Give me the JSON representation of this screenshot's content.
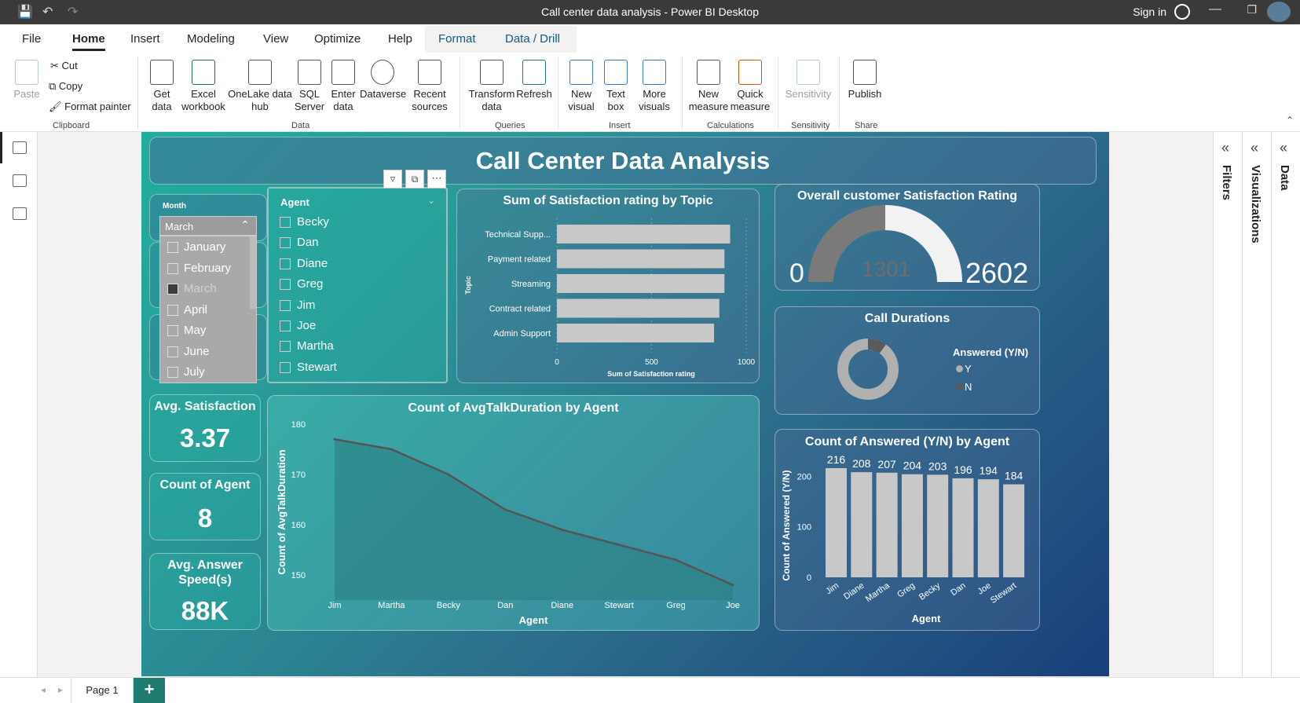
{
  "window": {
    "title": "Call center data analysis - Power BI Desktop",
    "signin": "Sign in"
  },
  "menu": {
    "file": "File",
    "home": "Home",
    "insert": "Insert",
    "modeling": "Modeling",
    "view": "View",
    "optimize": "Optimize",
    "help": "Help",
    "format": "Format",
    "data_drill": "Data / Drill"
  },
  "ribbon": {
    "paste": "Paste",
    "cut": "Cut",
    "copy": "Copy",
    "format_painter": "Format painter",
    "clipboard": "Clipboard",
    "get_data": "Get data",
    "excel": "Excel workbook",
    "onelake": "OneLake data hub",
    "sql": "SQL Server",
    "enter_data": "Enter data",
    "dataverse": "Dataverse",
    "recent": "Recent sources",
    "data_group": "Data",
    "transform": "Transform data",
    "refresh": "Refresh",
    "queries": "Queries",
    "new_visual": "New visual",
    "text_box": "Text box",
    "more_visuals": "More visuals",
    "insert_group": "Insert",
    "new_measure": "New measure",
    "quick_measure": "Quick measure",
    "calculations": "Calculations",
    "sensitivity": "Sensitivity",
    "sensitivity_group": "Sensitivity",
    "publish": "Publish",
    "share": "Share"
  },
  "report": {
    "title": "Call Center Data Analysis",
    "month_slicer": {
      "label": "Month",
      "selected": "March",
      "items": [
        "January",
        "February",
        "March",
        "April",
        "May",
        "June",
        "July"
      ]
    },
    "agent_slicer": {
      "label": "Agent",
      "items": [
        "Becky",
        "Dan",
        "Diane",
        "Greg",
        "Jim",
        "Joe",
        "Martha",
        "Stewart"
      ]
    },
    "kpis": [
      {
        "label": "Avg. Satisfaction",
        "value": "3.37"
      },
      {
        "label": "Count of Agent",
        "value": "8"
      },
      {
        "label": "Avg. Answer Speed(s)",
        "value": "88K"
      }
    ],
    "gauge": {
      "title": "Overall customer Satisfaction Rating",
      "min": "0",
      "value": "1301",
      "max": "2602",
      "fraction": 0.5
    },
    "donut": {
      "title": "Call Durations",
      "legend_title": "Answered (Y/N)",
      "legend": [
        "Y",
        "N"
      ]
    },
    "colors": {
      "bar": "#c8c8c8",
      "area": "#2b7f83",
      "line": "#555555"
    }
  },
  "chart_data": [
    {
      "type": "bar",
      "title": "Sum of Satisfaction rating by Topic",
      "xlabel": "Sum of Satisfaction rating",
      "ylabel": "Topic",
      "categories": [
        "Technical Supp...",
        "Payment related",
        "Streaming",
        "Contract related",
        "Admin Support"
      ],
      "values": [
        915,
        885,
        885,
        858,
        830
      ],
      "xlim": [
        0,
        1000
      ],
      "xticks": [
        "0",
        "500",
        "1000"
      ]
    },
    {
      "type": "area",
      "title": "Count of AvgTalkDuration by Agent",
      "xlabel": "Agent",
      "ylabel": "Count of AvgTalkDuration",
      "categories": [
        "Jim",
        "Martha",
        "Becky",
        "Dan",
        "Diane",
        "Stewart",
        "Greg",
        "Joe"
      ],
      "values": [
        177,
        175,
        170,
        163,
        159,
        156,
        153,
        148
      ],
      "ylim": [
        145,
        180
      ],
      "yticks": [
        "150",
        "160",
        "170",
        "180"
      ]
    },
    {
      "type": "bar",
      "title": "Count of Answered (Y/N) by Agent",
      "xlabel": "Agent",
      "ylabel": "Count of Answered (Y/N)",
      "categories": [
        "Jim",
        "Diane",
        "Martha",
        "Greg",
        "Becky",
        "Dan",
        "Joe",
        "Stewart"
      ],
      "values": [
        216,
        208,
        207,
        204,
        203,
        196,
        194,
        184
      ],
      "labels": [
        "216",
        "208",
        "207",
        "204",
        "203",
        "196",
        "194",
        "184"
      ],
      "ylim": [
        0,
        230
      ],
      "yticks": [
        "0",
        "100",
        "200"
      ]
    },
    {
      "type": "pie",
      "title": "Call Durations",
      "categories": [
        "Y",
        "N"
      ],
      "values": [
        0.9,
        0.1
      ]
    }
  ],
  "bottom": {
    "page": "Page 1",
    "add": "+"
  },
  "panes": {
    "filters": "Filters",
    "visualizations": "Visualizations",
    "data": "Data"
  }
}
